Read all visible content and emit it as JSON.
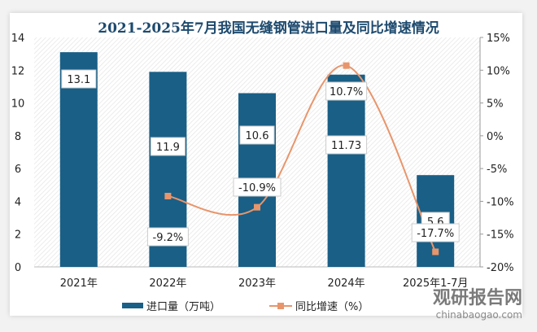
{
  "chart_data": {
    "type": "bar+line",
    "title": "2021-2025年7月我国无缝钢管进口量及同比增速情况",
    "categories": [
      "2021年",
      "2022年",
      "2023年",
      "2024年",
      "2025年1-7月"
    ],
    "series": [
      {
        "name": "进口量（万吨）",
        "type": "bar",
        "axis": "left",
        "values": [
          13.1,
          11.9,
          10.6,
          11.73,
          5.6
        ],
        "labels": [
          "13.1",
          "11.9",
          "10.6",
          "11.73",
          "5.6"
        ],
        "color": "#1a5f86"
      },
      {
        "name": "同比增速（%）",
        "type": "line",
        "axis": "right",
        "values": [
          null,
          -9.2,
          -10.9,
          10.7,
          -17.7
        ],
        "labels": [
          "",
          "-9.2%",
          "-10.9%",
          "10.7%",
          "-17.7%"
        ],
        "color": "#e8956b"
      }
    ],
    "y_left": {
      "min": 0,
      "max": 14,
      "ticks": [
        "0",
        "2",
        "4",
        "6",
        "8",
        "10",
        "12",
        "14"
      ]
    },
    "y_right": {
      "min": -20,
      "max": 15,
      "ticks": [
        "-20%",
        "-15%",
        "-10%",
        "-5%",
        "0%",
        "5%",
        "10%",
        "15%"
      ]
    },
    "legend": "bottom"
  },
  "watermark": {
    "brand": "观研报告网",
    "site": "chinabaogao.com"
  }
}
